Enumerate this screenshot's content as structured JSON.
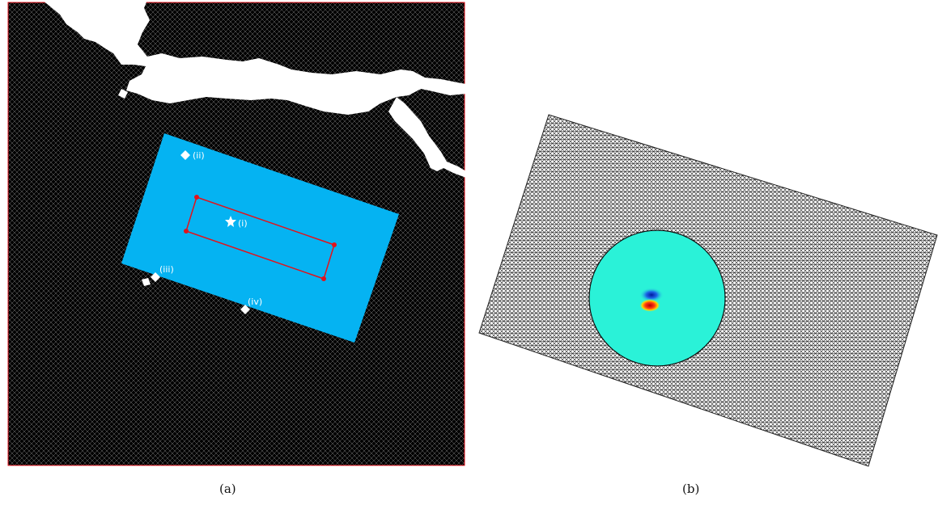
{
  "panels": [
    {
      "caption": "(a)"
    },
    {
      "caption": "(b)"
    }
  ],
  "markers": [
    {
      "label": "(i)",
      "symbol": "star-icon"
    },
    {
      "label": "(ii)",
      "symbol": "diamond-icon"
    },
    {
      "label": "(iii)",
      "symbol": "diamond-icon"
    },
    {
      "label": "(iv)",
      "symbol": "diamond-icon"
    }
  ],
  "colors": {
    "mesh_background": "#000000",
    "mesh_lines": "#ffffff",
    "fine_region": "#05b3f2",
    "source_box": "#e3121b",
    "rotated_mesh": "#7d7d7d",
    "disc_field": "#2af2d8"
  }
}
